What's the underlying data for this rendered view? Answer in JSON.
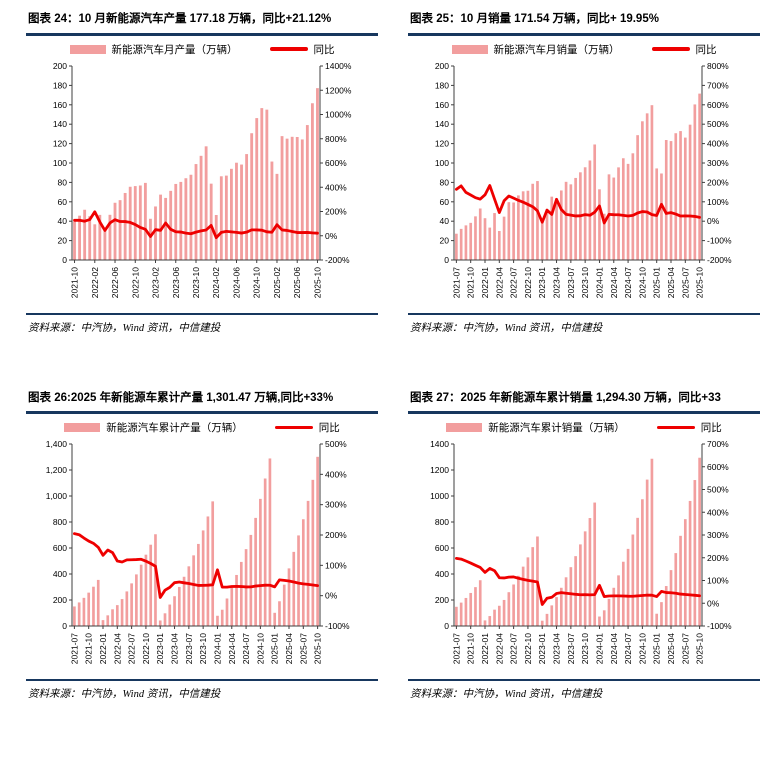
{
  "colors": {
    "rule": "#17375E",
    "bar": "#F29E9E",
    "line": "#EE0000",
    "text": "#000000"
  },
  "source_note": "资料来源：中汽协，Wind 资讯，中信建投",
  "chart_data": [
    {
      "type": "bar",
      "name": "nev-monthly-production",
      "title": "图表 24：10 月新能源汽车产量 177.18 万辆，同比+21.12%",
      "legend_position": "top",
      "left_axis": {
        "min": 0,
        "max": 200,
        "step": 20,
        "comma": false
      },
      "right_axis": {
        "min": -200,
        "max": 1400,
        "step": 200,
        "format": "percent"
      },
      "x_tick_every": 4,
      "x": [
        "2021-10",
        "2021-11",
        "2021-12",
        "2022-01",
        "2022-02",
        "2022-03",
        "2022-04",
        "2022-05",
        "2022-06",
        "2022-07",
        "2022-08",
        "2022-09",
        "2022-10",
        "2022-11",
        "2022-12",
        "2023-01",
        "2023-02",
        "2023-03",
        "2023-04",
        "2023-05",
        "2023-06",
        "2023-07",
        "2023-08",
        "2023-09",
        "2023-10",
        "2023-11",
        "2023-12",
        "2024-01",
        "2024-02",
        "2024-03",
        "2024-04",
        "2024-05",
        "2024-06",
        "2024-07",
        "2024-08",
        "2024-09",
        "2024-10",
        "2024-11",
        "2024-12",
        "2025-01",
        "2025-02",
        "2025-03",
        "2025-04",
        "2025-05",
        "2025-06",
        "2025-07",
        "2025-08",
        "2025-09",
        "2025-10"
      ],
      "series": [
        {
          "name": "新能源汽车月产量（万辆）",
          "type": "bar",
          "axis": "left",
          "values": [
            39.7,
            45.7,
            51.8,
            45.2,
            36.8,
            46.5,
            31.2,
            46.6,
            59.0,
            61.7,
            69.1,
            75.5,
            76.2,
            76.8,
            79.5,
            42.5,
            55.2,
            67.4,
            64.0,
            71.3,
            78.4,
            80.5,
            84.3,
            87.9,
            98.9,
            107.4,
            117.2,
            78.7,
            46.4,
            86.3,
            87.0,
            94.0,
            100.3,
            98.4,
            109.2,
            130.7,
            146.3,
            156.6,
            155.0,
            101.5,
            88.8,
            127.7,
            125.1,
            127.0,
            126.8,
            124.3,
            139.1,
            161.6,
            177.18
          ]
        },
        {
          "name": "同比",
          "type": "line",
          "axis": "right",
          "values": [
            127.5,
            127.8,
            120.0,
            133.2,
            197.5,
            114.1,
            43.9,
            105.4,
            132.8,
            117.3,
            117.0,
            110.0,
            92.0,
            68.1,
            53.5,
            -6.0,
            50.0,
            44.9,
            105.1,
            53.0,
            32.9,
            30.5,
            22.0,
            16.4,
            29.8,
            39.8,
            47.4,
            85.2,
            -15.9,
            28.0,
            35.9,
            31.8,
            27.9,
            22.2,
            29.5,
            48.7,
            47.9,
            45.8,
            32.3,
            29.0,
            91.4,
            48.0,
            43.8,
            35.1,
            26.4,
            26.3,
            27.4,
            23.6,
            21.12
          ]
        }
      ]
    },
    {
      "type": "bar",
      "name": "nev-monthly-sales",
      "title": "图表 25：10 月销量 171.54 万辆，同比+ 19.95%",
      "legend_position": "top",
      "left_axis": {
        "min": 0,
        "max": 200,
        "step": 20,
        "comma": false
      },
      "right_axis": {
        "min": -200,
        "max": 800,
        "step": 100,
        "format": "percent"
      },
      "x_tick_every": 3,
      "x": [
        "2021-07",
        "2021-08",
        "2021-09",
        "2021-10",
        "2021-11",
        "2021-12",
        "2022-01",
        "2022-02",
        "2022-03",
        "2022-04",
        "2022-05",
        "2022-06",
        "2022-07",
        "2022-08",
        "2022-09",
        "2022-10",
        "2022-11",
        "2022-12",
        "2023-01",
        "2023-02",
        "2023-03",
        "2023-04",
        "2023-05",
        "2023-06",
        "2023-07",
        "2023-08",
        "2023-09",
        "2023-10",
        "2023-11",
        "2023-12",
        "2024-01",
        "2024-02",
        "2024-03",
        "2024-04",
        "2024-05",
        "2024-06",
        "2024-07",
        "2024-08",
        "2024-09",
        "2024-10",
        "2024-11",
        "2024-12",
        "2025-01",
        "2025-02",
        "2025-03",
        "2025-04",
        "2025-05",
        "2025-06",
        "2025-07",
        "2025-08",
        "2025-09",
        "2025-10"
      ],
      "series": [
        {
          "name": "新能源汽车月销量（万辆）",
          "type": "bar",
          "axis": "left",
          "values": [
            27.1,
            32.1,
            35.7,
            38.3,
            45.0,
            53.1,
            43.1,
            33.4,
            48.4,
            29.9,
            44.7,
            59.6,
            59.3,
            66.6,
            70.8,
            71.4,
            78.6,
            81.4,
            40.8,
            52.5,
            65.3,
            63.6,
            71.7,
            80.6,
            78.0,
            84.6,
            90.4,
            95.6,
            102.6,
            119.1,
            72.9,
            47.7,
            88.3,
            85.0,
            95.5,
            104.9,
            99.1,
            110.0,
            128.7,
            143.0,
            151.2,
            159.6,
            94.4,
            89.2,
            123.7,
            122.6,
            130.7,
            132.9,
            126.2,
            139.5,
            160.4,
            171.54
          ]
        },
        {
          "name": "同比",
          "type": "line",
          "axis": "right",
          "values": [
            164.4,
            181.9,
            148.4,
            134.9,
            121.1,
            113.9,
            135.8,
            184.3,
            114.1,
            44.6,
            105.2,
            129.8,
            118.8,
            107.5,
            98.3,
            86.4,
            74.7,
            53.3,
            -5.3,
            57.2,
            34.9,
            112.7,
            60.4,
            35.2,
            31.5,
            27.0,
            27.7,
            33.9,
            30.5,
            46.3,
            78.7,
            -9.1,
            35.2,
            33.6,
            33.2,
            30.1,
            27.0,
            30.0,
            42.4,
            49.6,
            47.4,
            34.0,
            29.5,
            87.0,
            40.1,
            44.2,
            36.9,
            26.7,
            27.3,
            26.8,
            24.6,
            19.95
          ]
        }
      ]
    },
    {
      "type": "bar",
      "name": "nev-cumulative-production",
      "title": "图表 26:2025 年新能源车累计产量 1,301.47 万辆,同比+33%",
      "legend_position": "top",
      "left_axis": {
        "min": 0,
        "max": 1400,
        "step": 200,
        "comma": true
      },
      "right_axis": {
        "min": -100,
        "max": 500,
        "step": 100,
        "format": "percent"
      },
      "x_tick_every": 3,
      "x": [
        "2021-07",
        "2021-08",
        "2021-09",
        "2021-10",
        "2021-11",
        "2021-12",
        "2022-01",
        "2022-02",
        "2022-03",
        "2022-04",
        "2022-05",
        "2022-06",
        "2022-07",
        "2022-08",
        "2022-09",
        "2022-10",
        "2022-11",
        "2022-12",
        "2023-01",
        "2023-02",
        "2023-03",
        "2023-04",
        "2023-05",
        "2023-06",
        "2023-07",
        "2023-08",
        "2023-09",
        "2023-10",
        "2023-11",
        "2023-12",
        "2024-01",
        "2024-02",
        "2024-03",
        "2024-04",
        "2024-05",
        "2024-06",
        "2024-07",
        "2024-08",
        "2024-09",
        "2024-10",
        "2024-11",
        "2024-12",
        "2025-01",
        "2025-02",
        "2025-03",
        "2025-04",
        "2025-05",
        "2025-06",
        "2025-07",
        "2025-08",
        "2025-09",
        "2025-10"
      ],
      "series": [
        {
          "name": "新能源汽车累计产量（万辆）",
          "type": "bar",
          "axis": "left",
          "values": [
            150.4,
            181.3,
            216.6,
            256.6,
            302.3,
            354.5,
            45.2,
            82.0,
            128.5,
            160.5,
            207.1,
            266.1,
            327.9,
            397.0,
            471.7,
            548.5,
            625.3,
            705.8,
            42.5,
            97.7,
            165.0,
            229.1,
            300.5,
            378.8,
            459.1,
            543.4,
            631.3,
            735.2,
            842.6,
            958.7,
            78.7,
            125.2,
            211.5,
            298.5,
            392.6,
            492.9,
            591.4,
            700.8,
            831.6,
            977.9,
            1134.5,
            1288.8,
            101.5,
            190.3,
            318.1,
            443.2,
            570.2,
            696.8,
            821.2,
            962.5,
            1124.3,
            1301.47
          ]
        },
        {
          "name": "同比",
          "type": "line",
          "axis": "right",
          "values": [
            204.4,
            201.0,
            190.0,
            180.0,
            172.5,
            159.5,
            133.2,
            150.5,
            142.0,
            114.3,
            111.0,
            118.0,
            118.5,
            119.0,
            120.0,
            113.8,
            106.1,
            96.9,
            -6.0,
            18.1,
            27.3,
            42.8,
            45.1,
            42.4,
            40.0,
            36.9,
            33.7,
            33.9,
            34.5,
            35.8,
            85.3,
            28.2,
            28.1,
            30.3,
            30.7,
            30.1,
            28.8,
            29.0,
            31.7,
            33.0,
            34.6,
            34.4,
            29.0,
            52.0,
            50.4,
            48.3,
            45.2,
            41.4,
            38.8,
            37.3,
            35.2,
            33.0
          ]
        }
      ]
    },
    {
      "type": "bar",
      "name": "nev-cumulative-sales",
      "title": "图表 27：2025 年新能源车累计销量 1,294.30 万辆，同比+33",
      "legend_position": "top",
      "left_axis": {
        "min": 0,
        "max": 1400,
        "step": 200,
        "comma": false
      },
      "right_axis": {
        "min": -100,
        "max": 700,
        "step": 100,
        "format": "percent"
      },
      "x_tick_every": 3,
      "x": [
        "2021-07",
        "2021-08",
        "2021-09",
        "2021-10",
        "2021-11",
        "2021-12",
        "2022-01",
        "2022-02",
        "2022-03",
        "2022-04",
        "2022-05",
        "2022-06",
        "2022-07",
        "2022-08",
        "2022-09",
        "2022-10",
        "2022-11",
        "2022-12",
        "2023-01",
        "2023-02",
        "2023-03",
        "2023-04",
        "2023-05",
        "2023-06",
        "2023-07",
        "2023-08",
        "2023-09",
        "2023-10",
        "2023-11",
        "2023-12",
        "2024-01",
        "2024-02",
        "2024-03",
        "2024-04",
        "2024-05",
        "2024-06",
        "2024-07",
        "2024-08",
        "2024-09",
        "2024-10",
        "2024-11",
        "2024-12",
        "2025-01",
        "2025-02",
        "2025-03",
        "2025-04",
        "2025-05",
        "2025-06",
        "2025-07",
        "2025-08",
        "2025-09",
        "2025-10"
      ],
      "series": [
        {
          "name": "新能源汽车累计销量（万辆）",
          "type": "bar",
          "axis": "left",
          "values": [
            147.8,
            179.9,
            215.7,
            254.2,
            299.0,
            352.1,
            43.1,
            76.5,
            125.7,
            155.6,
            200.3,
            260.0,
            319.4,
            386.0,
            456.7,
            528.0,
            606.7,
            688.7,
            40.8,
            93.3,
            158.6,
            222.2,
            294.0,
            374.7,
            452.6,
            537.4,
            627.8,
            728.0,
            830.4,
            949.5,
            72.9,
            120.7,
            209.0,
            294.0,
            389.5,
            494.4,
            593.4,
            703.7,
            832.0,
            975.0,
            1126.2,
            1286.6,
            94.4,
            183.6,
            307.3,
            430.0,
            560.8,
            693.7,
            822.0,
            962.0,
            1122.8,
            1294.3
          ]
        },
        {
          "name": "同比",
          "type": "line",
          "axis": "right",
          "values": [
            197.1,
            194.0,
            185.7,
            176.6,
            166.8,
            157.5,
            135.8,
            153.1,
            143.0,
            112.2,
            111.2,
            115.0,
            115.6,
            110.0,
            105.0,
            100.4,
            97.0,
            93.4,
            -5.3,
            21.9,
            26.2,
            42.8,
            46.8,
            44.1,
            41.7,
            39.2,
            37.5,
            37.8,
            36.9,
            37.9,
            78.8,
            29.4,
            31.8,
            32.3,
            32.5,
            32.0,
            31.1,
            30.9,
            32.5,
            33.9,
            35.6,
            35.5,
            29.5,
            52.1,
            47.0,
            46.3,
            44.0,
            40.3,
            38.5,
            36.7,
            34.9,
            33.0
          ]
        }
      ]
    }
  ]
}
